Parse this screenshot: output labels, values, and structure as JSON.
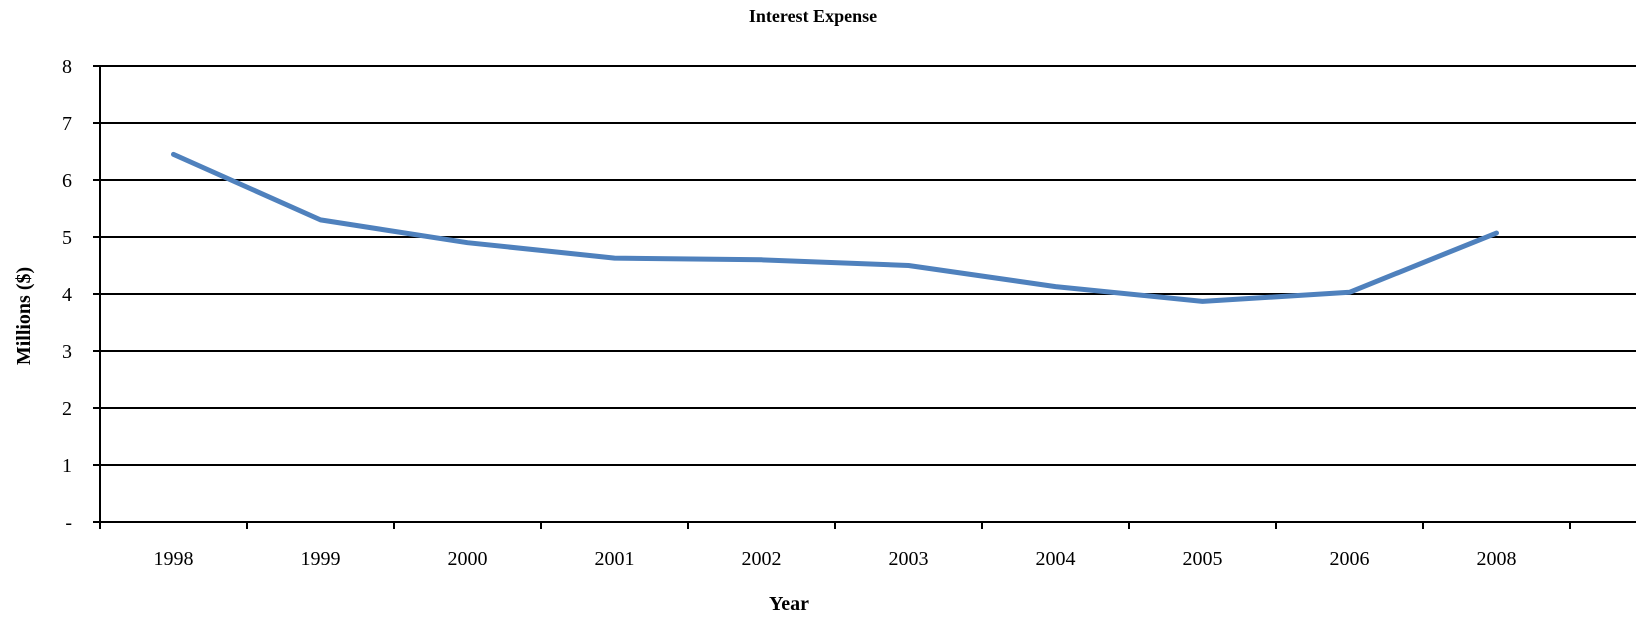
{
  "chart_data": {
    "type": "line",
    "title": "Interest Expense",
    "xlabel": "Year",
    "ylabel": "Millions ($)",
    "categories": [
      "1998",
      "1999",
      "2000",
      "2001",
      "2002",
      "2003",
      "2004",
      "2005",
      "2006",
      "2008"
    ],
    "series": [
      {
        "values": [
          6.45,
          5.3,
          4.9,
          4.63,
          4.6,
          4.5,
          4.13,
          3.87,
          4.03,
          5.07
        ]
      }
    ],
    "ylim": [
      0,
      8
    ],
    "yticks": [
      {
        "value": 0,
        "label": "-"
      },
      {
        "value": 1,
        "label": "1"
      },
      {
        "value": 2,
        "label": "2"
      },
      {
        "value": 3,
        "label": "3"
      },
      {
        "value": 4,
        "label": "4"
      },
      {
        "value": 5,
        "label": "5"
      },
      {
        "value": 6,
        "label": "6"
      },
      {
        "value": 7,
        "label": "7"
      },
      {
        "value": 8,
        "label": "8"
      }
    ],
    "grid": true,
    "legend": "none",
    "colors": {
      "series": "#4F81BD"
    }
  }
}
